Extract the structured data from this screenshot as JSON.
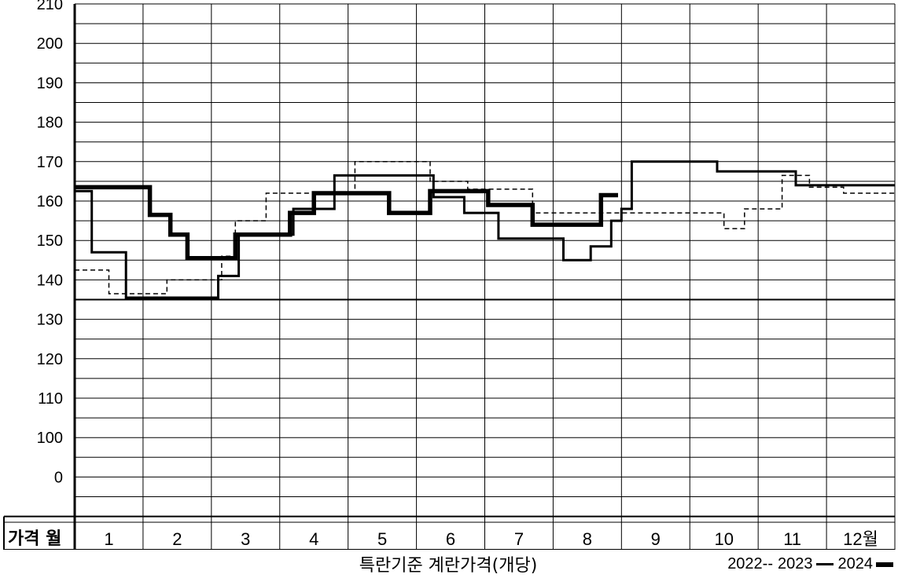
{
  "chart_data": {
    "type": "line",
    "step": true,
    "y_ticks": [
      "210",
      "200",
      "190",
      "180",
      "170",
      "160",
      "150",
      "140",
      "130",
      "120",
      "110",
      "100",
      "0"
    ],
    "corner_label": "가격 월",
    "months": [
      "1",
      "2",
      "3",
      "4",
      "5",
      "6",
      "7",
      "8",
      "9",
      "10",
      "11",
      "12월"
    ],
    "xlabel": "특란기준 계란가격(개당)",
    "grid": true,
    "series": [
      {
        "name": "2022",
        "style": "dashed",
        "color": "#000000",
        "points": [
          [
            1.0,
            147.5
          ],
          [
            1.5,
            147.5
          ],
          [
            1.5,
            141.5
          ],
          [
            2.35,
            141.5
          ],
          [
            2.35,
            145
          ],
          [
            3.15,
            145
          ],
          [
            3.15,
            151
          ],
          [
            3.35,
            151
          ],
          [
            3.35,
            160
          ],
          [
            3.8,
            160
          ],
          [
            3.8,
            167
          ],
          [
            5.1,
            167
          ],
          [
            5.1,
            175
          ],
          [
            6.2,
            175
          ],
          [
            6.2,
            170
          ],
          [
            6.75,
            170
          ],
          [
            6.75,
            168
          ],
          [
            7.7,
            168
          ],
          [
            7.7,
            162
          ],
          [
            10.5,
            162
          ],
          [
            10.5,
            158
          ],
          [
            10.8,
            158
          ],
          [
            10.8,
            163
          ],
          [
            11.35,
            163
          ],
          [
            11.35,
            171.5
          ],
          [
            11.75,
            171.5
          ],
          [
            11.75,
            168.5
          ],
          [
            12.25,
            168.5
          ],
          [
            12.25,
            167
          ],
          [
            13.0,
            167
          ]
        ]
      },
      {
        "name": "2023",
        "style": "solid",
        "color": "#000000",
        "points": [
          [
            1.0,
            167.5
          ],
          [
            1.25,
            167.5
          ],
          [
            1.25,
            152
          ],
          [
            1.75,
            152
          ],
          [
            1.75,
            140.5
          ],
          [
            3.1,
            140.5
          ],
          [
            3.1,
            146
          ],
          [
            3.4,
            146
          ],
          [
            3.4,
            156.5
          ],
          [
            4.2,
            156.5
          ],
          [
            4.2,
            163
          ],
          [
            4.8,
            163
          ],
          [
            4.8,
            171.5
          ],
          [
            6.25,
            171.5
          ],
          [
            6.25,
            166
          ],
          [
            6.7,
            166
          ],
          [
            6.7,
            162
          ],
          [
            7.2,
            162
          ],
          [
            7.2,
            155.5
          ],
          [
            8.15,
            155.5
          ],
          [
            8.15,
            150
          ],
          [
            8.55,
            150
          ],
          [
            8.55,
            153.5
          ],
          [
            8.85,
            153.5
          ],
          [
            8.85,
            160
          ],
          [
            9.0,
            160
          ],
          [
            9.0,
            163
          ],
          [
            9.15,
            163
          ],
          [
            9.15,
            175
          ],
          [
            10.4,
            175
          ],
          [
            10.4,
            172.5
          ],
          [
            11.55,
            172.5
          ],
          [
            11.55,
            169
          ],
          [
            13.0,
            169
          ]
        ]
      },
      {
        "name": "2024",
        "style": "bold",
        "color": "#000000",
        "points": [
          [
            1.0,
            168.5
          ],
          [
            2.1,
            168.5
          ],
          [
            2.1,
            161.5
          ],
          [
            2.4,
            161.5
          ],
          [
            2.4,
            156.5
          ],
          [
            2.65,
            156.5
          ],
          [
            2.65,
            150.5
          ],
          [
            3.35,
            150.5
          ],
          [
            3.35,
            156.5
          ],
          [
            4.15,
            156.5
          ],
          [
            4.15,
            162
          ],
          [
            4.5,
            162
          ],
          [
            4.5,
            167
          ],
          [
            5.6,
            167
          ],
          [
            5.6,
            162
          ],
          [
            6.2,
            162
          ],
          [
            6.2,
            167.5
          ],
          [
            7.05,
            167.5
          ],
          [
            7.05,
            164
          ],
          [
            7.7,
            164
          ],
          [
            7.7,
            159
          ],
          [
            8.7,
            159
          ],
          [
            8.7,
            166.5
          ],
          [
            8.95,
            166.5
          ]
        ]
      }
    ],
    "legend_entries": [
      {
        "label": "2022--"
      },
      {
        "label": "2023"
      },
      {
        "label": "2024"
      }
    ]
  }
}
